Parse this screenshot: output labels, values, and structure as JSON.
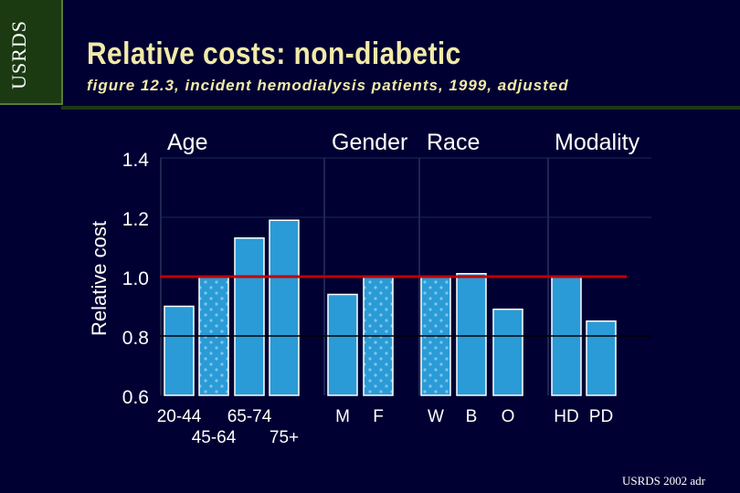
{
  "tab_label": "USRDS",
  "title": "Relative costs: non-diabetic",
  "subtitle": "figure 12.3, incident hemodialysis patients, 1999, adjusted",
  "footer": "USRDS 2002 adr",
  "colors": {
    "background": "#000033",
    "bar": "#2a9bd6",
    "reference_line": "#c00000",
    "title": "#f2eaa8"
  },
  "chart_data": {
    "type": "bar",
    "ylabel": "Relative cost",
    "ylim": [
      0.6,
      1.4
    ],
    "yticks": [
      "0.6",
      "0.8",
      "1.0",
      "1.2",
      "1.4"
    ],
    "reference_line": 1.0,
    "groups": [
      {
        "name": "Age",
        "bars": [
          {
            "label": "20-44",
            "value": 0.9,
            "pattern": "solid"
          },
          {
            "label": "45-64",
            "value": 1.0,
            "pattern": "dotted"
          },
          {
            "label": "65-74",
            "value": 1.13,
            "pattern": "solid"
          },
          {
            "label": "75+",
            "value": 1.19,
            "pattern": "solid"
          }
        ]
      },
      {
        "name": "Gender",
        "bars": [
          {
            "label": "M",
            "value": 0.94,
            "pattern": "solid"
          },
          {
            "label": "F",
            "value": 1.0,
            "pattern": "dotted"
          }
        ]
      },
      {
        "name": "Race",
        "bars": [
          {
            "label": "W",
            "value": 1.0,
            "pattern": "dotted"
          },
          {
            "label": "B",
            "value": 1.01,
            "pattern": "solid"
          },
          {
            "label": "O",
            "value": 0.89,
            "pattern": "solid"
          }
        ]
      },
      {
        "name": "Modality",
        "bars": [
          {
            "label": "HD",
            "value": 1.0,
            "pattern": "solid"
          },
          {
            "label": "PD",
            "value": 0.85,
            "pattern": "solid"
          }
        ]
      }
    ]
  }
}
